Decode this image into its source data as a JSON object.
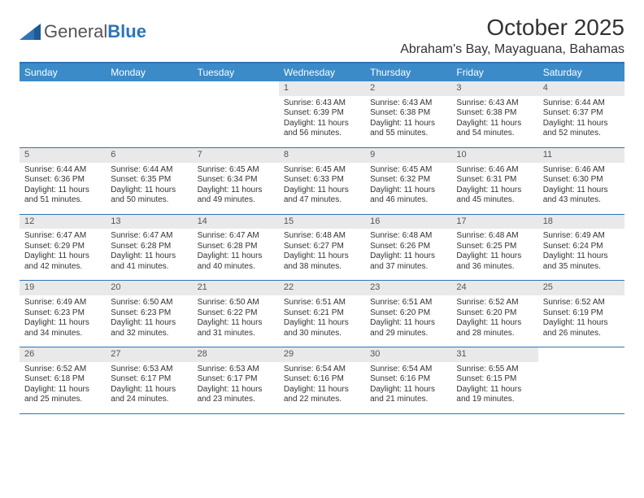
{
  "brand": {
    "general": "General",
    "blue": "Blue"
  },
  "title": {
    "month": "October 2025",
    "location": "Abraham's Bay, Mayaguana, Bahamas"
  },
  "colors": {
    "accent": "#3b8bc9",
    "rule": "#2f74b5",
    "daynum_bg": "#e9e9e9"
  },
  "dow": [
    "Sunday",
    "Monday",
    "Tuesday",
    "Wednesday",
    "Thursday",
    "Friday",
    "Saturday"
  ],
  "weeks": [
    [
      null,
      null,
      null,
      {
        "n": "1",
        "sr": "Sunrise: 6:43 AM",
        "ss": "Sunset: 6:39 PM",
        "d1": "Daylight: 11 hours",
        "d2": "and 56 minutes."
      },
      {
        "n": "2",
        "sr": "Sunrise: 6:43 AM",
        "ss": "Sunset: 6:38 PM",
        "d1": "Daylight: 11 hours",
        "d2": "and 55 minutes."
      },
      {
        "n": "3",
        "sr": "Sunrise: 6:43 AM",
        "ss": "Sunset: 6:38 PM",
        "d1": "Daylight: 11 hours",
        "d2": "and 54 minutes."
      },
      {
        "n": "4",
        "sr": "Sunrise: 6:44 AM",
        "ss": "Sunset: 6:37 PM",
        "d1": "Daylight: 11 hours",
        "d2": "and 52 minutes."
      }
    ],
    [
      {
        "n": "5",
        "sr": "Sunrise: 6:44 AM",
        "ss": "Sunset: 6:36 PM",
        "d1": "Daylight: 11 hours",
        "d2": "and 51 minutes."
      },
      {
        "n": "6",
        "sr": "Sunrise: 6:44 AM",
        "ss": "Sunset: 6:35 PM",
        "d1": "Daylight: 11 hours",
        "d2": "and 50 minutes."
      },
      {
        "n": "7",
        "sr": "Sunrise: 6:45 AM",
        "ss": "Sunset: 6:34 PM",
        "d1": "Daylight: 11 hours",
        "d2": "and 49 minutes."
      },
      {
        "n": "8",
        "sr": "Sunrise: 6:45 AM",
        "ss": "Sunset: 6:33 PM",
        "d1": "Daylight: 11 hours",
        "d2": "and 47 minutes."
      },
      {
        "n": "9",
        "sr": "Sunrise: 6:45 AM",
        "ss": "Sunset: 6:32 PM",
        "d1": "Daylight: 11 hours",
        "d2": "and 46 minutes."
      },
      {
        "n": "10",
        "sr": "Sunrise: 6:46 AM",
        "ss": "Sunset: 6:31 PM",
        "d1": "Daylight: 11 hours",
        "d2": "and 45 minutes."
      },
      {
        "n": "11",
        "sr": "Sunrise: 6:46 AM",
        "ss": "Sunset: 6:30 PM",
        "d1": "Daylight: 11 hours",
        "d2": "and 43 minutes."
      }
    ],
    [
      {
        "n": "12",
        "sr": "Sunrise: 6:47 AM",
        "ss": "Sunset: 6:29 PM",
        "d1": "Daylight: 11 hours",
        "d2": "and 42 minutes."
      },
      {
        "n": "13",
        "sr": "Sunrise: 6:47 AM",
        "ss": "Sunset: 6:28 PM",
        "d1": "Daylight: 11 hours",
        "d2": "and 41 minutes."
      },
      {
        "n": "14",
        "sr": "Sunrise: 6:47 AM",
        "ss": "Sunset: 6:28 PM",
        "d1": "Daylight: 11 hours",
        "d2": "and 40 minutes."
      },
      {
        "n": "15",
        "sr": "Sunrise: 6:48 AM",
        "ss": "Sunset: 6:27 PM",
        "d1": "Daylight: 11 hours",
        "d2": "and 38 minutes."
      },
      {
        "n": "16",
        "sr": "Sunrise: 6:48 AM",
        "ss": "Sunset: 6:26 PM",
        "d1": "Daylight: 11 hours",
        "d2": "and 37 minutes."
      },
      {
        "n": "17",
        "sr": "Sunrise: 6:48 AM",
        "ss": "Sunset: 6:25 PM",
        "d1": "Daylight: 11 hours",
        "d2": "and 36 minutes."
      },
      {
        "n": "18",
        "sr": "Sunrise: 6:49 AM",
        "ss": "Sunset: 6:24 PM",
        "d1": "Daylight: 11 hours",
        "d2": "and 35 minutes."
      }
    ],
    [
      {
        "n": "19",
        "sr": "Sunrise: 6:49 AM",
        "ss": "Sunset: 6:23 PM",
        "d1": "Daylight: 11 hours",
        "d2": "and 34 minutes."
      },
      {
        "n": "20",
        "sr": "Sunrise: 6:50 AM",
        "ss": "Sunset: 6:23 PM",
        "d1": "Daylight: 11 hours",
        "d2": "and 32 minutes."
      },
      {
        "n": "21",
        "sr": "Sunrise: 6:50 AM",
        "ss": "Sunset: 6:22 PM",
        "d1": "Daylight: 11 hours",
        "d2": "and 31 minutes."
      },
      {
        "n": "22",
        "sr": "Sunrise: 6:51 AM",
        "ss": "Sunset: 6:21 PM",
        "d1": "Daylight: 11 hours",
        "d2": "and 30 minutes."
      },
      {
        "n": "23",
        "sr": "Sunrise: 6:51 AM",
        "ss": "Sunset: 6:20 PM",
        "d1": "Daylight: 11 hours",
        "d2": "and 29 minutes."
      },
      {
        "n": "24",
        "sr": "Sunrise: 6:52 AM",
        "ss": "Sunset: 6:20 PM",
        "d1": "Daylight: 11 hours",
        "d2": "and 28 minutes."
      },
      {
        "n": "25",
        "sr": "Sunrise: 6:52 AM",
        "ss": "Sunset: 6:19 PM",
        "d1": "Daylight: 11 hours",
        "d2": "and 26 minutes."
      }
    ],
    [
      {
        "n": "26",
        "sr": "Sunrise: 6:52 AM",
        "ss": "Sunset: 6:18 PM",
        "d1": "Daylight: 11 hours",
        "d2": "and 25 minutes."
      },
      {
        "n": "27",
        "sr": "Sunrise: 6:53 AM",
        "ss": "Sunset: 6:17 PM",
        "d1": "Daylight: 11 hours",
        "d2": "and 24 minutes."
      },
      {
        "n": "28",
        "sr": "Sunrise: 6:53 AM",
        "ss": "Sunset: 6:17 PM",
        "d1": "Daylight: 11 hours",
        "d2": "and 23 minutes."
      },
      {
        "n": "29",
        "sr": "Sunrise: 6:54 AM",
        "ss": "Sunset: 6:16 PM",
        "d1": "Daylight: 11 hours",
        "d2": "and 22 minutes."
      },
      {
        "n": "30",
        "sr": "Sunrise: 6:54 AM",
        "ss": "Sunset: 6:16 PM",
        "d1": "Daylight: 11 hours",
        "d2": "and 21 minutes."
      },
      {
        "n": "31",
        "sr": "Sunrise: 6:55 AM",
        "ss": "Sunset: 6:15 PM",
        "d1": "Daylight: 11 hours",
        "d2": "and 19 minutes."
      },
      null
    ]
  ]
}
